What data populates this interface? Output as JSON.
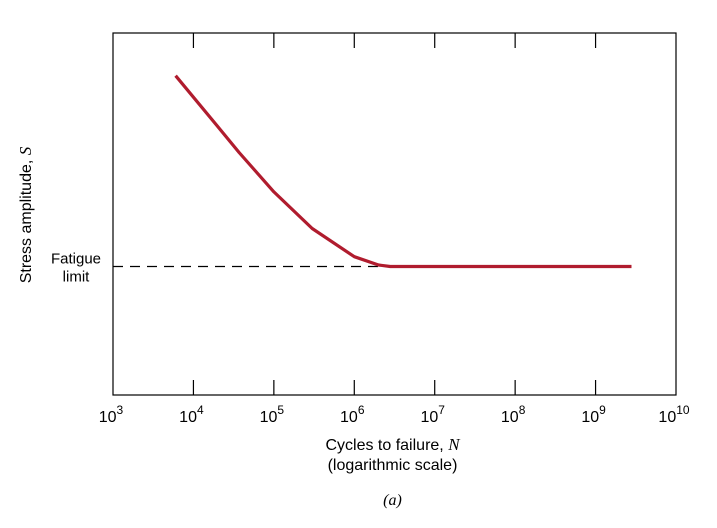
{
  "chart_data": {
    "type": "line",
    "x_scale": "log",
    "xlim": [
      1000,
      10000000000
    ],
    "x_ticks": [
      {
        "base": "10",
        "exp": "3"
      },
      {
        "base": "10",
        "exp": "4"
      },
      {
        "base": "10",
        "exp": "5"
      },
      {
        "base": "10",
        "exp": "6"
      },
      {
        "base": "10",
        "exp": "7"
      },
      {
        "base": "10",
        "exp": "8"
      },
      {
        "base": "10",
        "exp": "9"
      },
      {
        "base": "10",
        "exp": "10"
      }
    ],
    "xlabel": {
      "text": "Cycles to failure, ",
      "var": "N",
      "line2": "(logarithmic scale)"
    },
    "ylabel": {
      "text": "Stress amplitude, ",
      "var": "S"
    },
    "y_units": "relative (no numeric scale shown)",
    "ylim": [
      0,
      1
    ],
    "series": [
      {
        "color": "#b01c2e",
        "points": [
          [
            6000,
            0.882
          ],
          [
            20000,
            0.742
          ],
          [
            37000,
            0.67
          ],
          [
            100000,
            0.561
          ],
          [
            300000,
            0.46
          ],
          [
            1000000,
            0.382
          ],
          [
            2000000,
            0.359
          ],
          [
            2800000,
            0.355
          ],
          [
            10000000,
            0.355
          ],
          [
            100000000,
            0.355
          ],
          [
            1000000000,
            0.355
          ],
          [
            2800000000,
            0.355
          ]
        ]
      }
    ],
    "reference_line": {
      "label_line1": "Fatigue",
      "label_line2": "limit",
      "y": 0.355,
      "style": "dashed",
      "color": "#000000"
    },
    "caption": "(a)",
    "grid": false
  }
}
